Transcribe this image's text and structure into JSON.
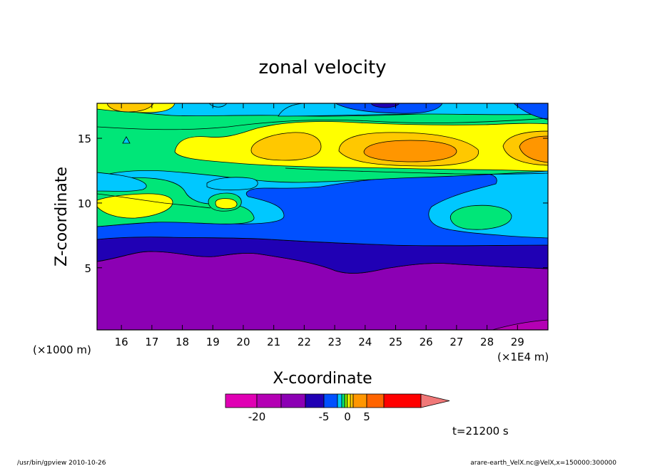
{
  "chart_data": {
    "type": "heatmap",
    "title": "zonal velocity",
    "xlabel": "X-coordinate",
    "ylabel": "Z-coordinate",
    "x_scale_note": "(×1E4 m)",
    "y_scale_note": "(×1000 m)",
    "xlim": [
      15.2,
      30.0
    ],
    "ylim": [
      0.2,
      17.7
    ],
    "x_ticks": [
      16,
      17,
      18,
      19,
      20,
      21,
      22,
      23,
      24,
      25,
      26,
      27,
      28,
      29
    ],
    "y_ticks": [
      5,
      10,
      15
    ],
    "x_tick_labels": [
      "16",
      "17",
      "18",
      "19",
      "20",
      "21",
      "22",
      "23",
      "24",
      "25",
      "26",
      "27",
      "28",
      "29"
    ],
    "y_tick_labels": [
      "5",
      "10",
      "15"
    ],
    "colorbar": {
      "colors": [
        "#e000b4",
        "#b400b4",
        "#8c00b4",
        "#2000b4",
        "#0050ff",
        "#00c8ff",
        "#00e678",
        "#78e600",
        "#ffff00",
        "#ffc800",
        "#ff9600",
        "#ff6400",
        "#ff0000",
        "#f07878"
      ],
      "tick_labels": [
        "-20",
        "-5",
        "0",
        "5"
      ],
      "extend": "max"
    },
    "contour_levels": [
      -20,
      -15,
      -10,
      -5,
      -3,
      -1,
      0,
      1,
      3,
      5,
      10,
      15
    ],
    "annotation": "t=21200 s"
  },
  "footer": {
    "left": "/usr/bin/gpview   2010-10-26",
    "right": "arare-earth_VelX.nc@VelX,x=150000:300000"
  }
}
